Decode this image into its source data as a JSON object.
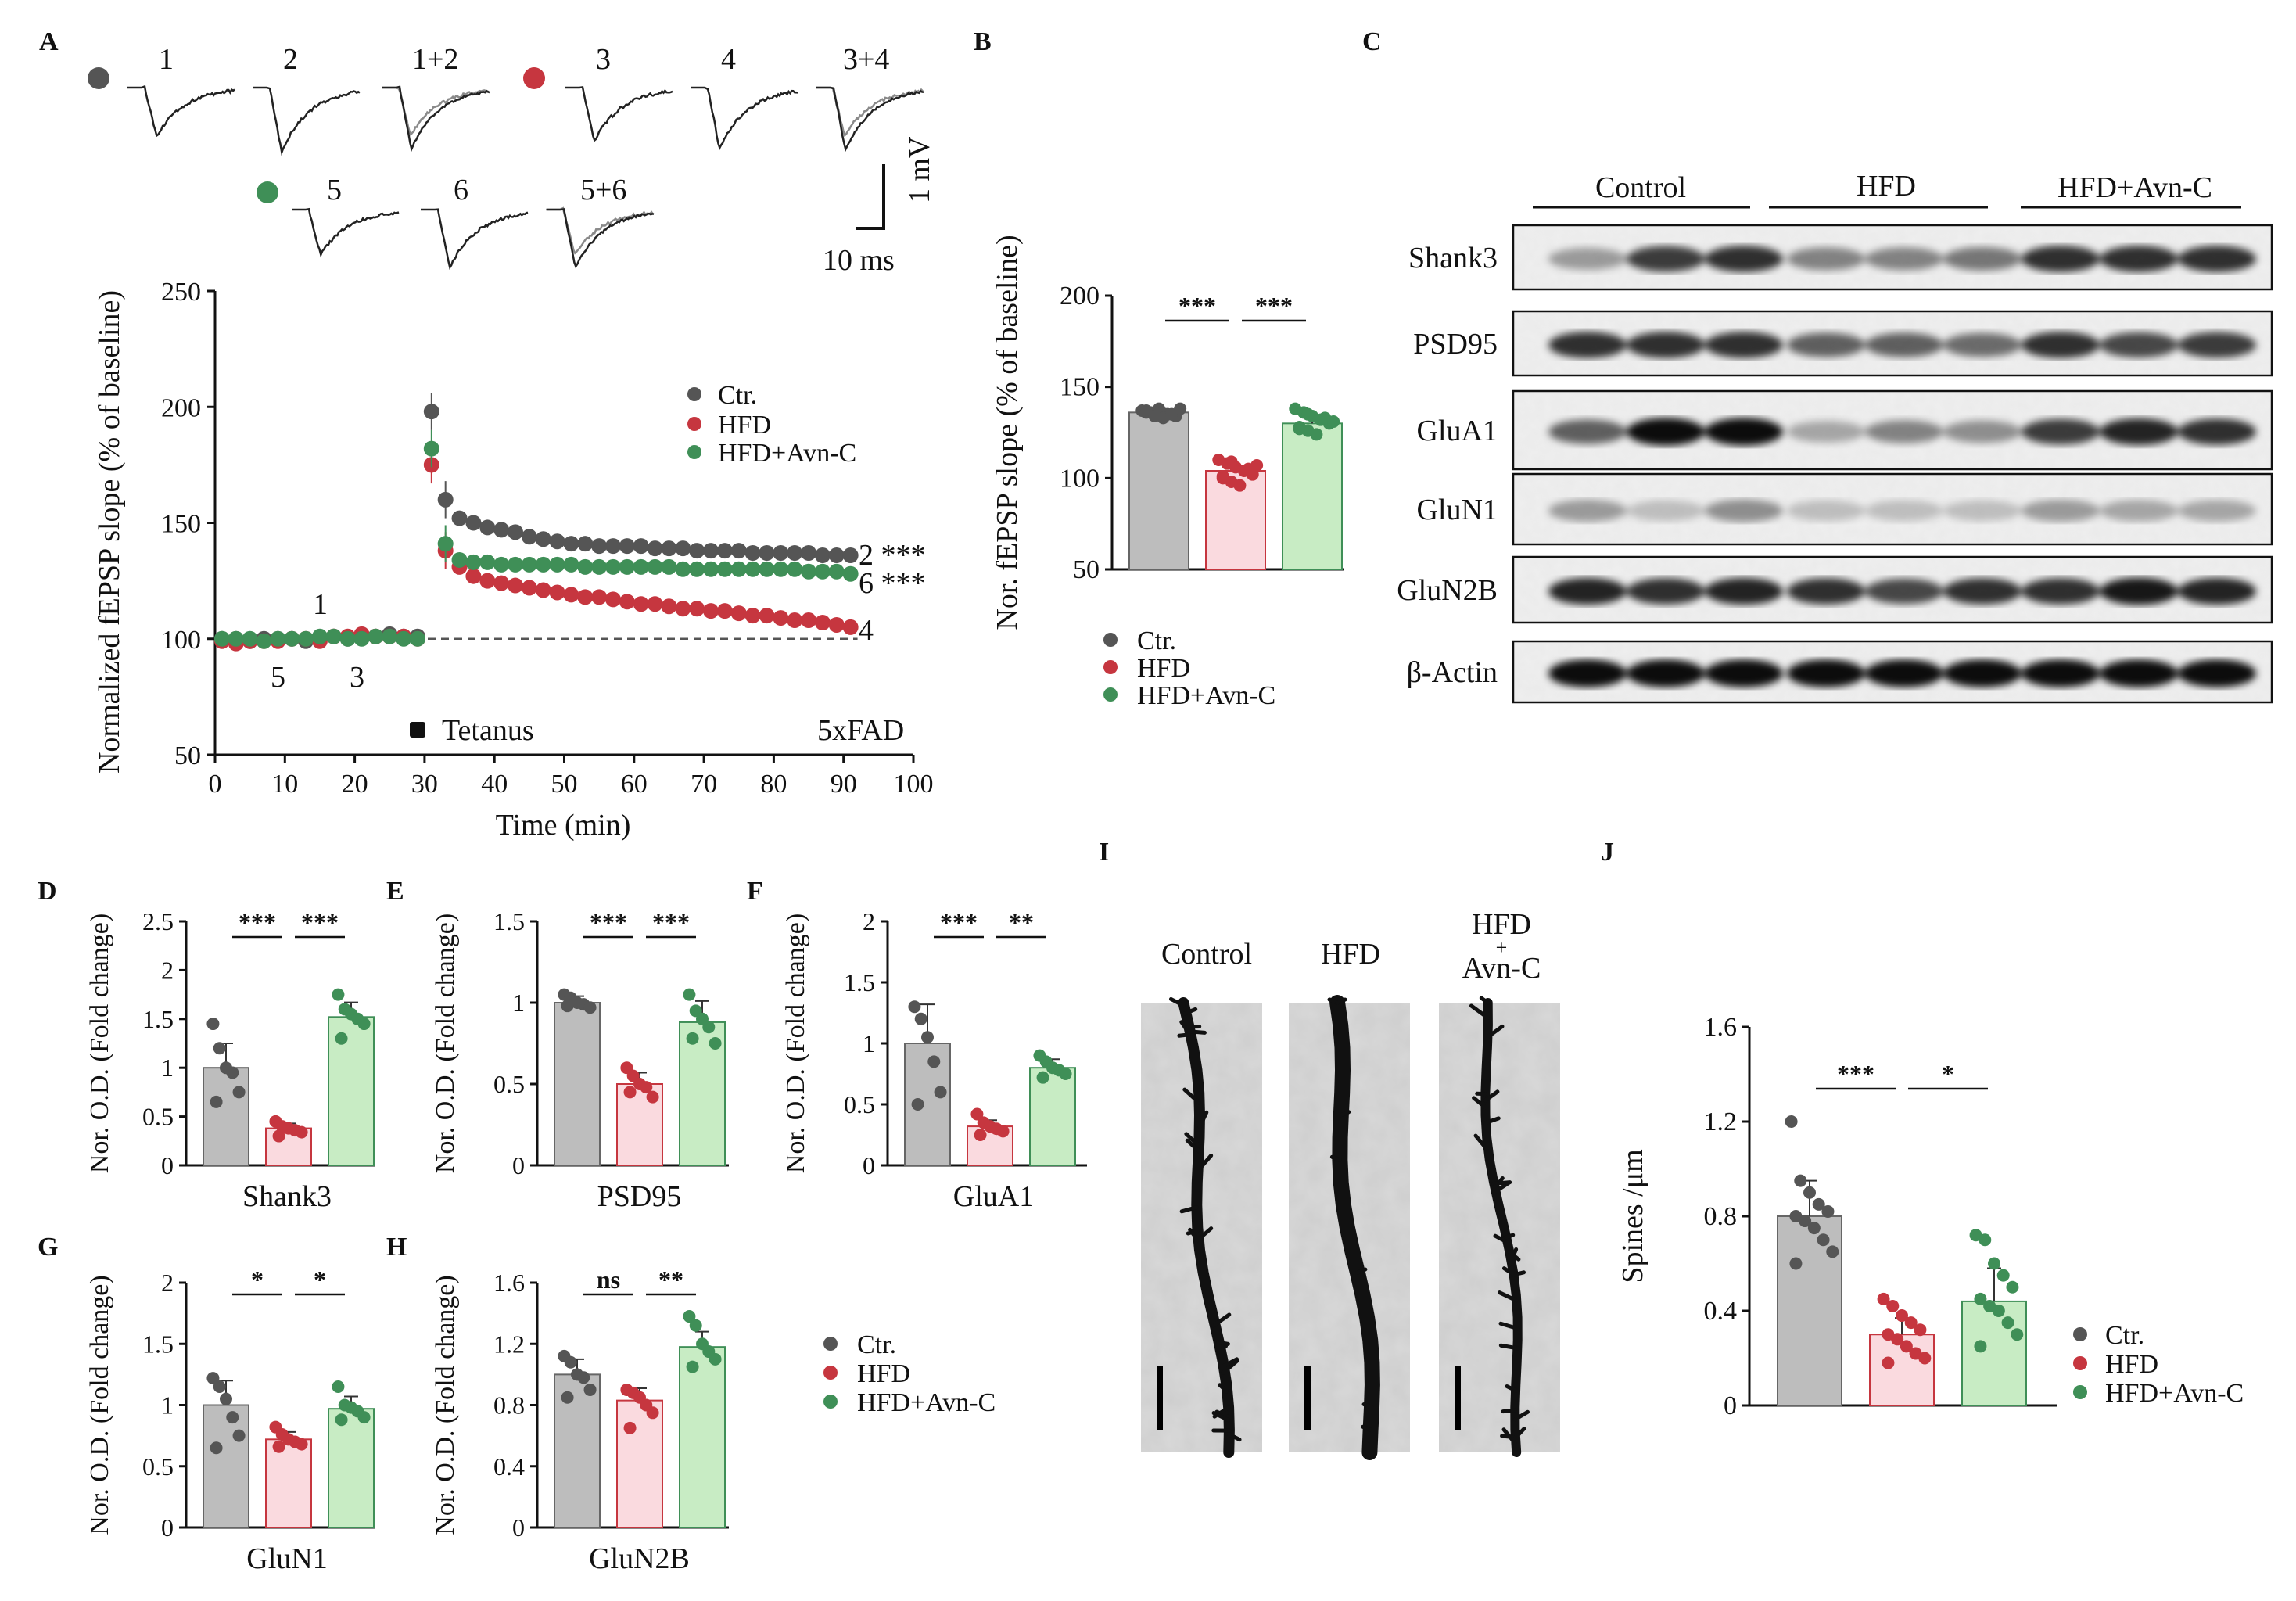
{
  "colors": {
    "ctr": "#555555",
    "hfd": "#c6363f",
    "avn": "#3f8f57",
    "ctr_fill": "#bdbdbd",
    "hfd_fill": "#fadadf",
    "avn_fill": "#c8ecc4"
  },
  "panel_labels": [
    "A",
    "B",
    "C",
    "D",
    "E",
    "F",
    "G",
    "H",
    "I",
    "J"
  ],
  "legend": {
    "ctr": "Ctr.",
    "hfd": "HFD",
    "avn": "HFD+Avn-C"
  },
  "panel_a": {
    "trace_labels": [
      "1",
      "2",
      "1+2",
      "3",
      "4",
      "3+4",
      "5",
      "6",
      "5+6"
    ],
    "scale_v": "1 mV",
    "scale_t": "10 ms",
    "right_labels": [
      "2 ***",
      "6 ***",
      "4"
    ],
    "inner_labels": [
      "1",
      "5",
      "3"
    ],
    "tetanus": "Tetanus",
    "model": "5xFAD"
  },
  "panel_c": {
    "groups": [
      "Control",
      "HFD",
      "HFD+Avn-C"
    ],
    "rows": [
      "Shank3",
      "PSD95",
      "GluA1",
      "GluN1",
      "GluN2B",
      "β-Actin"
    ]
  },
  "panel_i": {
    "labels": [
      "Control",
      "HFD",
      "HFD\n+\nAvn-C"
    ]
  },
  "chart_data": [
    {
      "panel": "A",
      "type": "scatter",
      "xlabel": "Time (min)",
      "ylabel": "Normalized fEPSP slope (% of baseline)",
      "xlim": [
        0,
        100
      ],
      "ylim": [
        50,
        250
      ],
      "xticks": [
        0,
        10,
        20,
        30,
        40,
        50,
        60,
        70,
        80,
        90,
        100
      ],
      "yticks": [
        50,
        100,
        150,
        200,
        250
      ],
      "reference_line": 100,
      "series": [
        {
          "name": "Ctr.",
          "points": [
            [
              1,
              100
            ],
            [
              3,
              100
            ],
            [
              5,
              99
            ],
            [
              7,
              100
            ],
            [
              9,
              100
            ],
            [
              11,
              100
            ],
            [
              13,
              99
            ],
            [
              15,
              100
            ],
            [
              17,
              101
            ],
            [
              19,
              100
            ],
            [
              21,
              101
            ],
            [
              23,
              101
            ],
            [
              25,
              102
            ],
            [
              27,
              101
            ],
            [
              29,
              101
            ],
            [
              31,
              198
            ],
            [
              33,
              160
            ],
            [
              35,
              152
            ],
            [
              37,
              150
            ],
            [
              39,
              148
            ],
            [
              41,
              147
            ],
            [
              43,
              146
            ],
            [
              45,
              144
            ],
            [
              47,
              143
            ],
            [
              49,
              142
            ],
            [
              51,
              141
            ],
            [
              53,
              141
            ],
            [
              55,
              140
            ],
            [
              57,
              140
            ],
            [
              59,
              140
            ],
            [
              61,
              140
            ],
            [
              63,
              139
            ],
            [
              65,
              139
            ],
            [
              67,
              139
            ],
            [
              69,
              138
            ],
            [
              71,
              138
            ],
            [
              73,
              138
            ],
            [
              75,
              138
            ],
            [
              77,
              137
            ],
            [
              79,
              137
            ],
            [
              81,
              137
            ],
            [
              83,
              137
            ],
            [
              85,
              137
            ],
            [
              87,
              136
            ],
            [
              89,
              136
            ],
            [
              91,
              136
            ]
          ]
        },
        {
          "name": "HFD",
          "points": [
            [
              1,
              99
            ],
            [
              3,
              98
            ],
            [
              5,
              99
            ],
            [
              7,
              99
            ],
            [
              9,
              99
            ],
            [
              11,
              100
            ],
            [
              13,
              100
            ],
            [
              15,
              99
            ],
            [
              17,
              101
            ],
            [
              19,
              101
            ],
            [
              21,
              102
            ],
            [
              23,
              101
            ],
            [
              25,
              101
            ],
            [
              27,
              101
            ],
            [
              29,
              100
            ],
            [
              31,
              175
            ],
            [
              33,
              138
            ],
            [
              35,
              131
            ],
            [
              37,
              127
            ],
            [
              39,
              125
            ],
            [
              41,
              124
            ],
            [
              43,
              123
            ],
            [
              45,
              122
            ],
            [
              47,
              121
            ],
            [
              49,
              120
            ],
            [
              51,
              119
            ],
            [
              53,
              118
            ],
            [
              55,
              118
            ],
            [
              57,
              117
            ],
            [
              59,
              116
            ],
            [
              61,
              115
            ],
            [
              63,
              115
            ],
            [
              65,
              114
            ],
            [
              67,
              113
            ],
            [
              69,
              113
            ],
            [
              71,
              112
            ],
            [
              73,
              112
            ],
            [
              75,
              111
            ],
            [
              77,
              110
            ],
            [
              79,
              110
            ],
            [
              81,
              109
            ],
            [
              83,
              108
            ],
            [
              85,
              108
            ],
            [
              87,
              107
            ],
            [
              89,
              106
            ],
            [
              91,
              105
            ]
          ]
        },
        {
          "name": "HFD+Avn-C",
          "points": [
            [
              1,
              100
            ],
            [
              3,
              100
            ],
            [
              5,
              100
            ],
            [
              7,
              99
            ],
            [
              9,
              100
            ],
            [
              11,
              100
            ],
            [
              13,
              100
            ],
            [
              15,
              101
            ],
            [
              17,
              101
            ],
            [
              19,
              100
            ],
            [
              21,
              100
            ],
            [
              23,
              101
            ],
            [
              25,
              101
            ],
            [
              27,
              100
            ],
            [
              29,
              100
            ],
            [
              31,
              182
            ],
            [
              33,
              141
            ],
            [
              35,
              134
            ],
            [
              37,
              133
            ],
            [
              39,
              133
            ],
            [
              41,
              132
            ],
            [
              43,
              132
            ],
            [
              45,
              132
            ],
            [
              47,
              132
            ],
            [
              49,
              132
            ],
            [
              51,
              132
            ],
            [
              53,
              131
            ],
            [
              55,
              131
            ],
            [
              57,
              131
            ],
            [
              59,
              131
            ],
            [
              61,
              131
            ],
            [
              63,
              131
            ],
            [
              65,
              131
            ],
            [
              67,
              130
            ],
            [
              69,
              130
            ],
            [
              71,
              130
            ],
            [
              73,
              130
            ],
            [
              75,
              130
            ],
            [
              77,
              130
            ],
            [
              79,
              130
            ],
            [
              81,
              130
            ],
            [
              83,
              130
            ],
            [
              85,
              129
            ],
            [
              87,
              129
            ],
            [
              89,
              129
            ],
            [
              91,
              128
            ]
          ]
        }
      ]
    },
    {
      "panel": "B",
      "type": "bar",
      "ylabel": "Nor. fEPSP slope (% of baseline)",
      "ylim": [
        50,
        200
      ],
      "yticks": [
        50,
        100,
        150,
        200
      ],
      "categories": [
        "Ctr.",
        "HFD",
        "HFD+Avn-C"
      ],
      "values": [
        136,
        104,
        130
      ],
      "errors": [
        2,
        3,
        3
      ],
      "points": [
        [
          137,
          136,
          138,
          135,
          134,
          137,
          136,
          133,
          135,
          138,
          136,
          134
        ],
        [
          110,
          108,
          106,
          104,
          102,
          100,
          98,
          96,
          105,
          107,
          101,
          109
        ],
        [
          138,
          136,
          134,
          132,
          130,
          128,
          126,
          124,
          133,
          131,
          127,
          135
        ]
      ],
      "significance": [
        "***",
        "***"
      ]
    },
    {
      "panel": "D",
      "type": "bar",
      "xlabel": "Shank3",
      "ylabel": "Nor. O.D.  (Fold change)",
      "ylim": [
        0,
        2.5
      ],
      "yticks": [
        0,
        0.5,
        1,
        1.5,
        2,
        2.5
      ],
      "ytick_labels": [
        "0",
        "0.5",
        "1",
        "1.5",
        "2",
        "2.5"
      ],
      "categories": [
        "Ctr.",
        "HFD",
        "HFD+Avn-C"
      ],
      "values": [
        1.0,
        0.38,
        1.52
      ],
      "errors": [
        0.25,
        0.05,
        0.15
      ],
      "points": [
        [
          1.45,
          1.2,
          1.0,
          0.95,
          0.75,
          0.65
        ],
        [
          0.45,
          0.4,
          0.38,
          0.36,
          0.34,
          0.3
        ],
        [
          1.75,
          1.6,
          1.55,
          1.5,
          1.45,
          1.3
        ]
      ],
      "significance": [
        "***",
        "***"
      ]
    },
    {
      "panel": "E",
      "type": "bar",
      "xlabel": "PSD95",
      "ylabel": "Nor. O.D.  (Fold change)",
      "ylim": [
        0,
        1.5
      ],
      "yticks": [
        0,
        0.5,
        1,
        1.5
      ],
      "ytick_labels": [
        "0",
        "0.5",
        "1",
        "1.5"
      ],
      "categories": [
        "Ctr.",
        "HFD",
        "HFD+Avn-C"
      ],
      "values": [
        1.0,
        0.5,
        0.88
      ],
      "errors": [
        0.04,
        0.07,
        0.13
      ],
      "points": [
        [
          1.05,
          1.03,
          1.0,
          0.99,
          0.97,
          0.98
        ],
        [
          0.6,
          0.55,
          0.5,
          0.48,
          0.42,
          0.45
        ],
        [
          1.05,
          0.95,
          0.9,
          0.85,
          0.75,
          0.78
        ]
      ],
      "significance": [
        "***",
        "***"
      ]
    },
    {
      "panel": "F",
      "type": "bar",
      "xlabel": "GluA1",
      "ylabel": "Nor. O.D.  (Fold change)",
      "ylim": [
        0,
        2
      ],
      "yticks": [
        0,
        0.5,
        1,
        1.5,
        2
      ],
      "ytick_labels": [
        "0",
        "0.5",
        "1",
        "1.5",
        "2"
      ],
      "categories": [
        "Ctr.",
        "HFD",
        "HFD+Avn-C"
      ],
      "values": [
        1.0,
        0.32,
        0.8
      ],
      "errors": [
        0.32,
        0.05,
        0.07
      ],
      "points": [
        [
          1.3,
          1.2,
          1.05,
          0.85,
          0.6,
          0.5
        ],
        [
          0.42,
          0.35,
          0.32,
          0.3,
          0.28,
          0.25
        ],
        [
          0.9,
          0.85,
          0.8,
          0.78,
          0.75,
          0.72
        ]
      ],
      "significance": [
        "***",
        "**"
      ]
    },
    {
      "panel": "G",
      "type": "bar",
      "xlabel": "GluN1",
      "ylabel": "Nor. O.D.  (Fold change)",
      "ylim": [
        0,
        2
      ],
      "yticks": [
        0,
        0.5,
        1,
        1.5,
        2
      ],
      "ytick_labels": [
        "0",
        "0.5",
        "1",
        "1.5",
        "2"
      ],
      "categories": [
        "Ctr.",
        "HFD",
        "HFD+Avn-C"
      ],
      "values": [
        1.0,
        0.72,
        0.97
      ],
      "errors": [
        0.2,
        0.06,
        0.1
      ],
      "points": [
        [
          1.22,
          1.15,
          1.05,
          0.9,
          0.75,
          0.65
        ],
        [
          0.82,
          0.76,
          0.72,
          0.7,
          0.68,
          0.66
        ],
        [
          1.15,
          1.0,
          0.98,
          0.95,
          0.9,
          0.88
        ]
      ],
      "significance": [
        "*",
        "*"
      ]
    },
    {
      "panel": "H",
      "type": "bar",
      "xlabel": "GluN2B",
      "ylabel": "Nor. O.D.  (Fold change)",
      "ylim": [
        0,
        1.6
      ],
      "yticks": [
        0,
        0.4,
        0.8,
        1.2,
        1.6
      ],
      "ytick_labels": [
        "0",
        "0.4",
        "0.8",
        "1.2",
        "1.6"
      ],
      "categories": [
        "Ctr.",
        "HFD",
        "HFD+Avn-C"
      ],
      "values": [
        1.0,
        0.83,
        1.18
      ],
      "errors": [
        0.1,
        0.08,
        0.1
      ],
      "points": [
        [
          1.12,
          1.08,
          1.0,
          0.98,
          0.9,
          0.85
        ],
        [
          0.9,
          0.88,
          0.85,
          0.8,
          0.75,
          0.65
        ],
        [
          1.38,
          1.32,
          1.2,
          1.15,
          1.1,
          1.05
        ]
      ],
      "significance": [
        "ns",
        "**"
      ]
    },
    {
      "panel": "J",
      "type": "bar",
      "ylabel": "Spines /μm",
      "ylim": [
        0,
        1.6
      ],
      "yticks": [
        0,
        0.4,
        0.8,
        1.2,
        1.6
      ],
      "ytick_labels": [
        "0",
        "0.4",
        "0.8",
        "1.2",
        "1.6"
      ],
      "categories": [
        "Ctr.",
        "HFD",
        "HFD+Avn-C"
      ],
      "values": [
        0.8,
        0.3,
        0.44
      ],
      "errors": [
        0.15,
        0.07,
        0.14
      ],
      "points": [
        [
          1.2,
          0.95,
          0.9,
          0.85,
          0.82,
          0.8,
          0.78,
          0.75,
          0.7,
          0.65,
          0.6
        ],
        [
          0.45,
          0.42,
          0.38,
          0.35,
          0.32,
          0.3,
          0.28,
          0.25,
          0.22,
          0.2,
          0.18
        ],
        [
          0.72,
          0.7,
          0.6,
          0.55,
          0.5,
          0.45,
          0.42,
          0.4,
          0.35,
          0.3,
          0.25
        ]
      ],
      "significance": [
        "***",
        "*"
      ]
    }
  ]
}
